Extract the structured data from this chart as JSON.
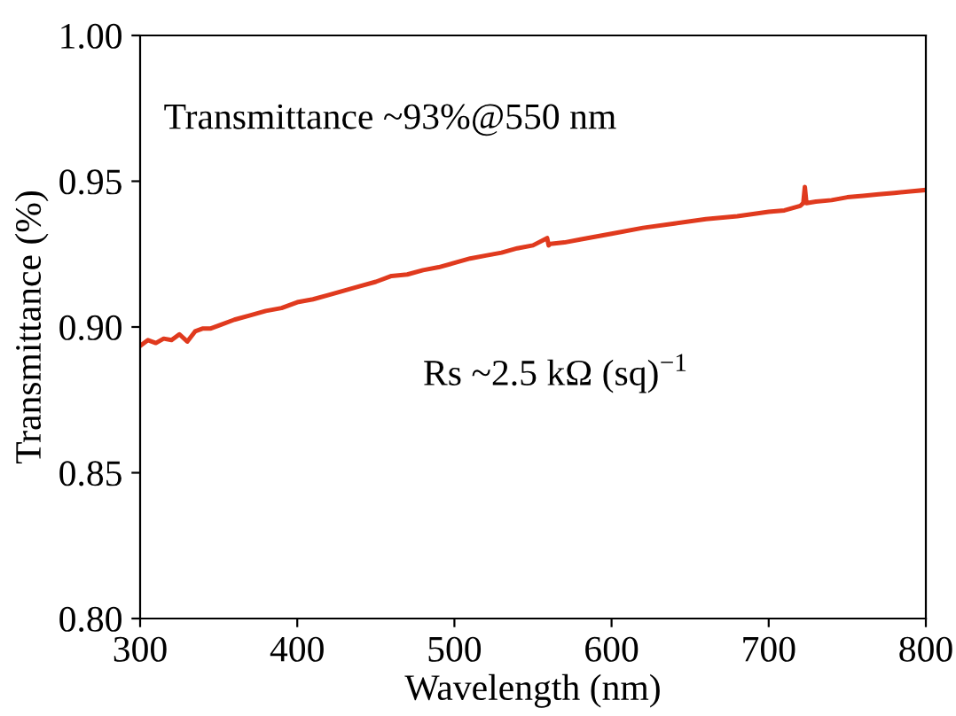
{
  "chart_data": {
    "type": "line",
    "xlabel": "Wavelength (nm)",
    "ylabel": "Transmittance (%)",
    "annotations": [
      "Transmittance ~93%@550 nm",
      "Rs ~2.5 kΩ (sq)$^{−1}$"
    ],
    "xlim": [
      300,
      800
    ],
    "ylim": [
      0.8,
      1.0
    ],
    "xticks": [
      300,
      400,
      500,
      600,
      700,
      800
    ],
    "yticks": [
      {
        "value": 0.8,
        "label": "0.80"
      },
      {
        "value": 0.85,
        "label": "0.85"
      },
      {
        "value": 0.9,
        "label": "0.90"
      },
      {
        "value": 0.95,
        "label": "0.95"
      },
      {
        "value": 1.0,
        "label": "1.00"
      }
    ],
    "grid": false,
    "series": [
      {
        "color": "#e03a1e",
        "x": [
          300,
          305,
          310,
          315,
          320,
          325,
          330,
          335,
          340,
          345,
          350,
          360,
          370,
          380,
          390,
          400,
          410,
          420,
          430,
          440,
          450,
          460,
          470,
          480,
          490,
          500,
          510,
          520,
          530,
          540,
          550,
          559,
          560,
          561,
          570,
          580,
          590,
          600,
          620,
          640,
          660,
          680,
          700,
          710,
          720,
          722,
          723,
          724,
          730,
          740,
          750,
          760,
          770,
          780,
          790,
          800
        ],
        "values": [
          0.8935,
          0.8955,
          0.8945,
          0.896,
          0.8955,
          0.8975,
          0.895,
          0.8985,
          0.8995,
          0.8995,
          0.9005,
          0.9025,
          0.904,
          0.9055,
          0.9065,
          0.9085,
          0.9095,
          0.911,
          0.9125,
          0.914,
          0.9155,
          0.9175,
          0.918,
          0.9195,
          0.9205,
          0.922,
          0.9235,
          0.9245,
          0.9255,
          0.927,
          0.928,
          0.9305,
          0.928,
          0.9285,
          0.929,
          0.93,
          0.931,
          0.932,
          0.934,
          0.9355,
          0.937,
          0.938,
          0.9395,
          0.94,
          0.9415,
          0.9425,
          0.948,
          0.9425,
          0.943,
          0.9435,
          0.9445,
          0.945,
          0.9455,
          0.946,
          0.9465,
          0.947
        ]
      }
    ]
  }
}
